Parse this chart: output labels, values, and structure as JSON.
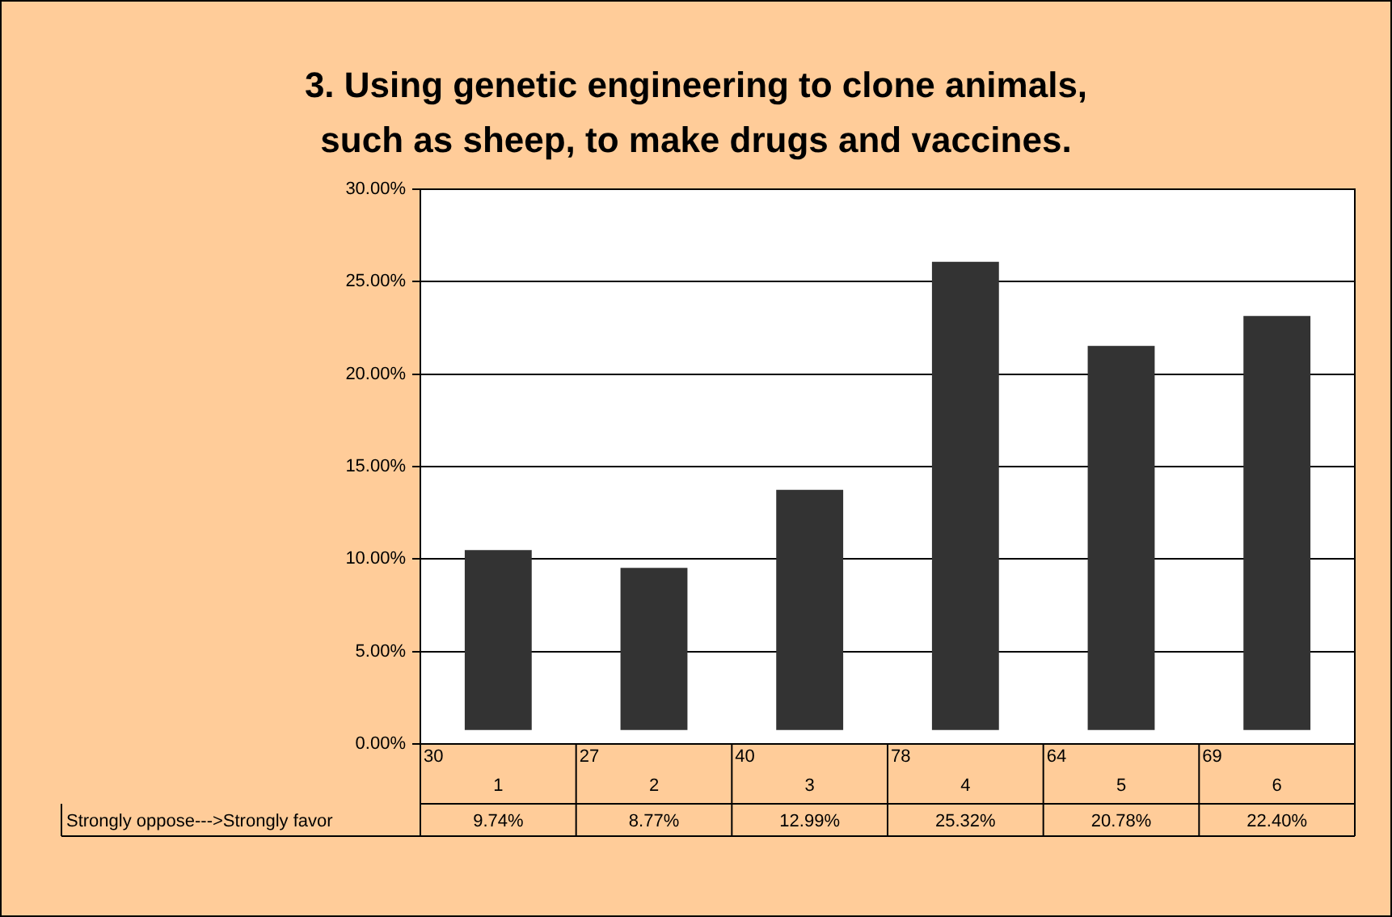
{
  "chart_data": {
    "type": "bar",
    "title": "3. Using genetic engineering to clone animals,\nsuch as sheep, to make drugs and vaccines.",
    "xlabel": "Strongly oppose--->Strongly favor",
    "categories": [
      "1",
      "2",
      "3",
      "4",
      "5",
      "6"
    ],
    "values": [
      9.74,
      8.77,
      12.99,
      25.32,
      20.78,
      22.4
    ],
    "base": [
      0.75,
      0.75,
      0.75,
      0.75,
      0.75,
      0.75
    ],
    "color": "#333333",
    "value_labels": [
      "9.74%",
      "8.77%",
      "12.99%",
      "25.32%",
      "20.78%",
      "22.40%"
    ],
    "annotations": [
      "30",
      "27",
      "40",
      "78",
      "64",
      "69"
    ],
    "ylim": [
      0,
      30
    ],
    "yticks": [
      {
        "value": 0,
        "label": "0.00%"
      },
      {
        "value": 5,
        "label": "5.00%"
      },
      {
        "value": 10,
        "label": "10.00%"
      },
      {
        "value": 15,
        "label": "15.00%"
      },
      {
        "value": 20,
        "label": "20.00%"
      },
      {
        "value": 25,
        "label": "25.00%"
      },
      {
        "value": 30,
        "label": "30.00%"
      }
    ],
    "grid": "y"
  }
}
